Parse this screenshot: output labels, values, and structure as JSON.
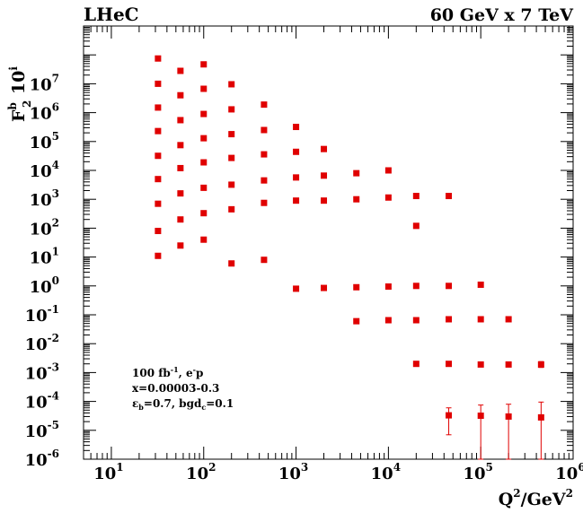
{
  "chart_data": {
    "type": "scatter",
    "title_left": "LHeC",
    "title_right": "60 GeV x 7 TeV",
    "ylabel": {
      "base": "F",
      "sup": "b",
      "sub": "2",
      "suffix": " 10",
      "exp": "i"
    },
    "xlabel": {
      "base": "Q",
      "sup": "2",
      "suffix": "/GeV",
      "sup2": "2"
    },
    "x_scale": "log",
    "y_scale": "log",
    "xlim": [
      5,
      1000000
    ],
    "ylim": [
      1e-06,
      1000000000.0
    ],
    "x_ticks": [
      {
        "value": 10,
        "base": "10",
        "exp": "1"
      },
      {
        "value": 100,
        "base": "10",
        "exp": "2"
      },
      {
        "value": 1000,
        "base": "10",
        "exp": "3"
      },
      {
        "value": 10000,
        "base": "10",
        "exp": "4"
      },
      {
        "value": 100000,
        "base": "10",
        "exp": "5"
      },
      {
        "value": 1000000,
        "base": "10",
        "exp": "6"
      }
    ],
    "y_ticks": [
      {
        "value": 1e-06,
        "base": "10",
        "exp": "-6"
      },
      {
        "value": 1e-05,
        "base": "10",
        "exp": "-5"
      },
      {
        "value": 0.0001,
        "base": "10",
        "exp": "-4"
      },
      {
        "value": 0.001,
        "base": "10",
        "exp": "-3"
      },
      {
        "value": 0.01,
        "base": "10",
        "exp": "-2"
      },
      {
        "value": 0.1,
        "base": "10",
        "exp": "-1"
      },
      {
        "value": 1,
        "base": "10",
        "exp": "0"
      },
      {
        "value": 10,
        "base": "10",
        "exp": "1"
      },
      {
        "value": 100,
        "base": "10",
        "exp": "2"
      },
      {
        "value": 1000,
        "base": "10",
        "exp": "3"
      },
      {
        "value": 10000,
        "base": "10",
        "exp": "4"
      },
      {
        "value": 100000,
        "base": "10",
        "exp": "5"
      },
      {
        "value": 1000000,
        "base": "10",
        "exp": "6"
      },
      {
        "value": 10000000,
        "base": "10",
        "exp": "7"
      }
    ],
    "annotation": {
      "line1": {
        "text": "100 fb",
        "sup": "-1",
        "rest": ", e",
        "sup2": "-",
        "rest2": "p"
      },
      "line2": {
        "text": "x=0.00003-0.3"
      },
      "line3": {
        "text": "ε",
        "sub": "b",
        "rest": "=0.7, bgd",
        "sub2": "c",
        "rest2": "=0.1"
      }
    },
    "marker_color": "#e00000",
    "series": [
      {
        "points": [
          [
            32,
            11
          ],
          [
            56,
            25
          ],
          [
            100,
            40
          ],
          [
            200,
            6
          ],
          [
            450,
            8
          ],
          [
            1000,
            0.8
          ],
          [
            2000,
            0.85
          ],
          [
            4500,
            0.9
          ],
          [
            10000,
            0.95
          ],
          [
            20000,
            1.0
          ],
          [
            45000,
            1.0
          ],
          [
            100000,
            1.1
          ]
        ]
      },
      {
        "points": [
          [
            32,
            80
          ],
          [
            56,
            200
          ],
          [
            100,
            330
          ],
          [
            200,
            450
          ],
          [
            450,
            750
          ],
          [
            1000,
            900
          ],
          [
            2000,
            900
          ],
          [
            4500,
            1000
          ],
          [
            10000,
            1150
          ],
          [
            20000,
            1300
          ],
          [
            45000,
            1300
          ]
        ]
      },
      {
        "points": [
          [
            32,
            700
          ],
          [
            56,
            1600
          ],
          [
            100,
            2500
          ],
          [
            200,
            3200
          ],
          [
            450,
            4500
          ],
          [
            1000,
            5700
          ],
          [
            2000,
            6600
          ],
          [
            4500,
            8000
          ],
          [
            10000,
            10000
          ],
          [
            20000,
            120
          ]
        ]
      },
      {
        "points": [
          [
            32,
            5000
          ],
          [
            56,
            12000
          ],
          [
            100,
            19000
          ],
          [
            200,
            27000
          ],
          [
            450,
            36000
          ],
          [
            1000,
            44000
          ],
          [
            2000,
            55000
          ]
        ]
      },
      {
        "points": [
          [
            32,
            32000
          ],
          [
            56,
            75000
          ],
          [
            100,
            130000
          ],
          [
            200,
            180000
          ],
          [
            450,
            250000
          ],
          [
            1000,
            320000
          ]
        ]
      },
      {
        "points": [
          [
            32,
            230000
          ],
          [
            56,
            550000
          ],
          [
            100,
            900000
          ],
          [
            200,
            1300000
          ],
          [
            450,
            1900000
          ]
        ]
      },
      {
        "points": [
          [
            32,
            1500000
          ],
          [
            56,
            4000000
          ],
          [
            100,
            6700000
          ],
          [
            200,
            9600000
          ]
        ]
      },
      {
        "points": [
          [
            32,
            10000000
          ],
          [
            56,
            28000000
          ],
          [
            100,
            47000000
          ]
        ]
      },
      {
        "points": [
          [
            32,
            75000000
          ]
        ]
      },
      {
        "points": [
          [
            4500,
            0.06
          ],
          [
            10000,
            0.065
          ],
          [
            20000,
            0.065
          ],
          [
            45000,
            0.07
          ],
          [
            100000,
            0.07
          ],
          [
            200000,
            0.07
          ]
        ]
      },
      {
        "points": [
          [
            20000,
            0.002
          ],
          [
            45000,
            0.002
          ],
          [
            100000,
            0.0019
          ],
          [
            200000,
            0.0019
          ],
          [
            450000,
            0.0019
          ]
        ]
      },
      {
        "points": [
          [
            45000,
            3.3e-05
          ],
          [
            100000,
            3.2e-05
          ],
          [
            200000,
            3e-05
          ],
          [
            450000,
            2.8e-05
          ]
        ]
      }
    ],
    "error_bars": [
      {
        "x": 200000,
        "lo": 0.0017,
        "hi": 0.0021
      },
      {
        "x": 450000,
        "lo": 0.0015,
        "hi": 0.0024
      },
      {
        "x": 45000,
        "lo": 7e-06,
        "hi": 6e-05
      },
      {
        "x": 100000,
        "lo": 1e-06,
        "hi": 7.5e-05
      },
      {
        "x": 200000,
        "lo": 1e-06,
        "hi": 8e-05
      },
      {
        "x": 450000,
        "lo": 1e-06,
        "hi": 9.5e-05
      }
    ]
  }
}
